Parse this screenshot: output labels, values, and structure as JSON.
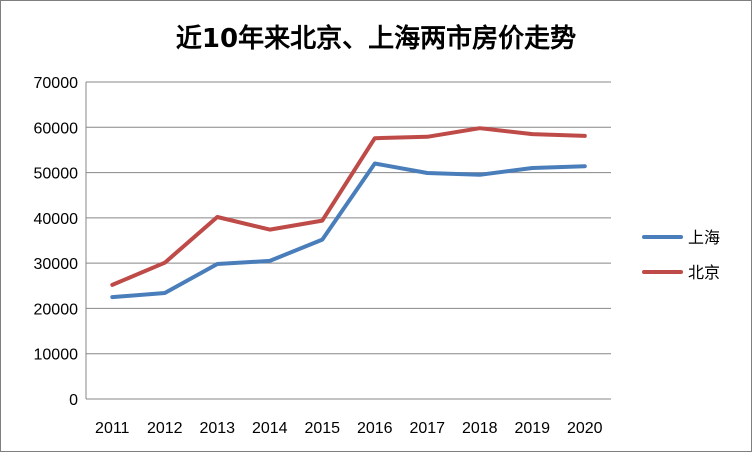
{
  "chart_data": {
    "type": "line",
    "title": "近10年来北京、上海两市房价走势",
    "xlabel": "",
    "ylabel": "",
    "categories": [
      "2011",
      "2012",
      "2013",
      "2014",
      "2015",
      "2016",
      "2017",
      "2018",
      "2019",
      "2020"
    ],
    "ylim": [
      0,
      70000
    ],
    "yticks": [
      0,
      10000,
      20000,
      30000,
      40000,
      50000,
      60000,
      70000
    ],
    "grid": true,
    "legend_position": "right",
    "series": [
      {
        "name": "上海",
        "color": "#4a7ebb",
        "values": [
          22500,
          23400,
          29800,
          30500,
          35200,
          52000,
          49900,
          49500,
          51000,
          51400
        ]
      },
      {
        "name": "北京",
        "color": "#be4b48",
        "values": [
          25200,
          30100,
          40200,
          37400,
          39400,
          57600,
          57900,
          59800,
          58500,
          58100
        ]
      }
    ]
  }
}
